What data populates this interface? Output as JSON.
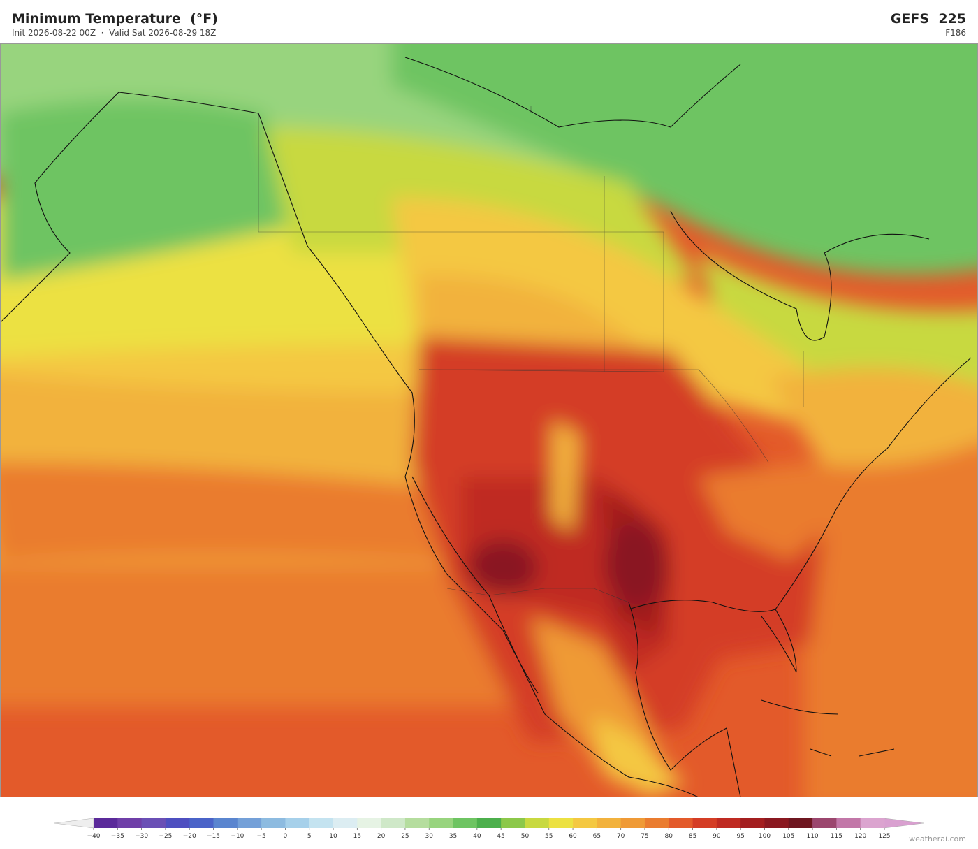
{
  "header": {
    "title": "Minimum Temperature  (°F)",
    "subtitle": "Init 2026-08-22 00Z  ·  Valid Sat 2026-08-29 18Z",
    "model": "GEFS  225",
    "forecast_hour": "F186"
  },
  "colorbar": {
    "ticks": [
      {
        "value": -40,
        "label": "−40"
      },
      {
        "value": -35,
        "label": "−35"
      },
      {
        "value": -30,
        "label": "−30"
      },
      {
        "value": -25,
        "label": "−25"
      },
      {
        "value": -20,
        "label": "−20"
      },
      {
        "value": -15,
        "label": "−15"
      },
      {
        "value": -10,
        "label": "−10"
      },
      {
        "value": -5,
        "label": "−5"
      },
      0,
      5,
      10,
      15,
      20,
      25,
      30,
      35,
      40,
      45,
      50,
      55,
      60,
      65,
      70,
      75,
      80,
      85,
      90,
      95,
      100,
      105,
      110,
      115,
      120,
      125
    ],
    "colors": [
      "#5b2a9a",
      "#6f3fa8",
      "#6a4fb5",
      "#4e4fc0",
      "#4a63c8",
      "#5a85cf",
      "#74a0d8",
      "#8dbbe0",
      "#a6d0ea",
      "#c4e3f0",
      "#dcedf2",
      "#e6f3e4",
      "#cfe8c8",
      "#b5dd9e",
      "#98d47e",
      "#6ec462",
      "#4caf4c",
      "#8cc84a",
      "#c8d940",
      "#ece142",
      "#f4c842",
      "#f2b23d",
      "#ef9a36",
      "#ea7c2f",
      "#e35a2a",
      "#d43d25",
      "#bf2a22",
      "#a31e1f",
      "#8a1820",
      "#6e1620",
      "#9b466e",
      "#c277a8",
      "#dba4cf"
    ],
    "extend_colors": [
      "#eeeeee",
      "#d9a0d0"
    ]
  },
  "watermark": "weatherai.com"
}
